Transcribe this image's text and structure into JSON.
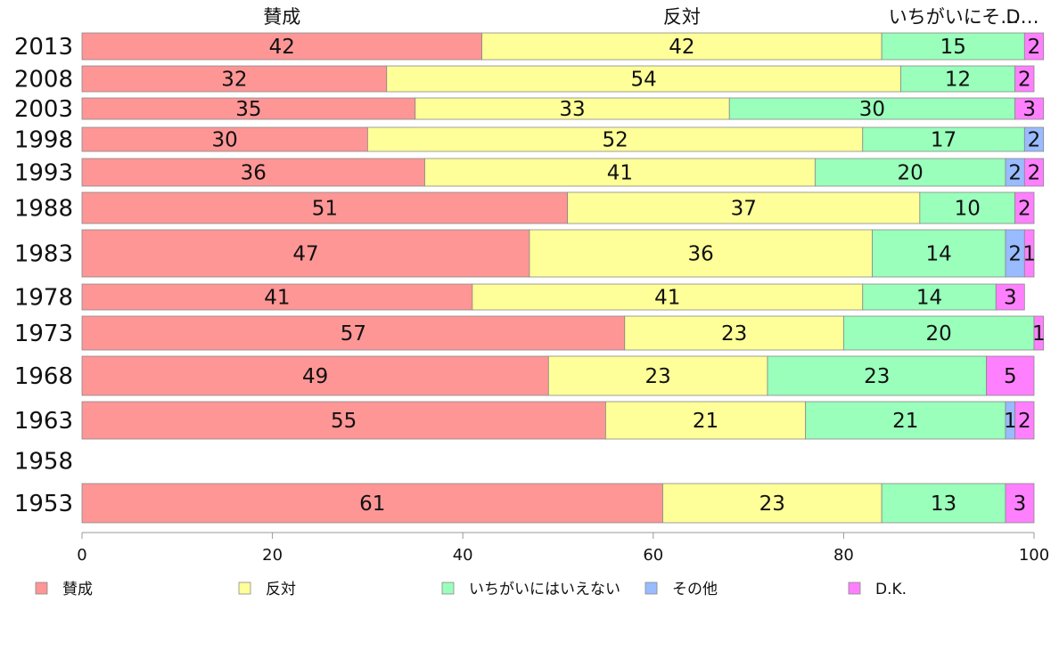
{
  "chart_data": {
    "type": "bar",
    "orientation": "horizontal",
    "stacked": true,
    "categories": [
      "2013",
      "2008",
      "2003",
      "1998",
      "1993",
      "1988",
      "1983",
      "1978",
      "1973",
      "1968",
      "1963",
      "1958",
      "1953"
    ],
    "series": [
      {
        "name": "賛成",
        "color": "#ff9696",
        "values": [
          42,
          32,
          35,
          30,
          36,
          51,
          47,
          41,
          57,
          49,
          55,
          null,
          61
        ]
      },
      {
        "name": "反対",
        "color": "#ffff99",
        "values": [
          42,
          54,
          33,
          52,
          41,
          37,
          36,
          41,
          23,
          23,
          21,
          null,
          23
        ]
      },
      {
        "name": "いちがいにはいえない",
        "color": "#99ffbb",
        "values": [
          15,
          12,
          30,
          17,
          20,
          10,
          14,
          14,
          20,
          23,
          21,
          null,
          13
        ]
      },
      {
        "name": "その他",
        "color": "#99bbff",
        "values": [
          0,
          0,
          0,
          2,
          2,
          0,
          2,
          0,
          0,
          0,
          1,
          null,
          0
        ]
      },
      {
        "name": "D.K.",
        "color": "#ff80ff",
        "values": [
          2,
          2,
          3,
          0,
          2,
          2,
          1,
          3,
          1,
          5,
          2,
          null,
          3
        ]
      }
    ],
    "top_labels": [
      "賛成",
      "反対",
      "いちがいにそ…",
      "D…"
    ],
    "xlim": [
      0,
      100
    ],
    "xticks": [
      "0",
      "20",
      "40",
      "60",
      "80",
      "100"
    ],
    "legend_position": "bottom",
    "grid": false
  }
}
